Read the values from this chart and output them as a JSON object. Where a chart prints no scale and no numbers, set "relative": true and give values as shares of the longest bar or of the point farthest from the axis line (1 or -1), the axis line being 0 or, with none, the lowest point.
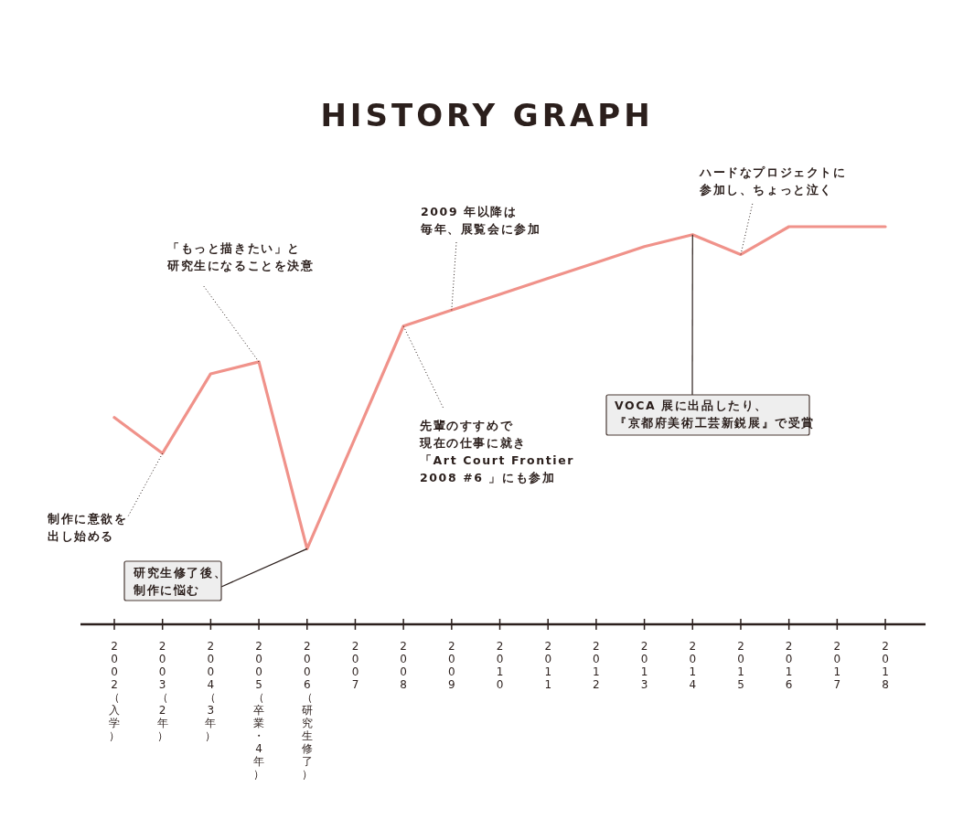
{
  "chart_data": {
    "type": "line",
    "title": "HISTORY GRAPH",
    "relative": true,
    "categories": [
      "2002（入学）",
      "2003（2年）",
      "2004（3年）",
      "2005（卒業・4年）",
      "2006（研究生修了）",
      "2007",
      "2008",
      "2009",
      "2010",
      "2011",
      "2012",
      "2013",
      "2014",
      "2015",
      "2016",
      "2017",
      "2018"
    ],
    "series": [
      {
        "color": "#f0928a",
        "values": [
          0.52,
          0.43,
          0.63,
          0.66,
          0.19,
          0.47,
          0.75,
          0.79,
          0.83,
          0.87,
          0.91,
          0.95,
          0.98,
          0.93,
          1,
          1,
          1
        ]
      }
    ],
    "annotations": [
      {
        "text": "制作に意欲を出し始める",
        "x": "2003（2年）",
        "y": 0.43
      },
      {
        "text": "「もっと描きたい」と研究生になることを決意",
        "x": "2005（卒業・4年）",
        "y": 0.66
      },
      {
        "text": "研究生修了後、制作に悩む",
        "x": "2006（研究生修了）",
        "y": 0.19
      },
      {
        "text": "先輩のすすめで現在の仕事に就き「Art Court Frontier 2008 #6 」にも参加",
        "x": "2008",
        "y": 0.75
      },
      {
        "text": "2009 年以降は毎年、展覧会に参加",
        "x": "2009",
        "y": 0.79
      },
      {
        "text": "VOCA 展に出品したり、『京都府美術工芸新鋭展』で受賞",
        "x": "2014",
        "y": 0.98
      },
      {
        "text": "ハードなプロジェクトに参加し、ちょっと泣く",
        "x": "2015",
        "y": 0.93
      }
    ]
  }
}
